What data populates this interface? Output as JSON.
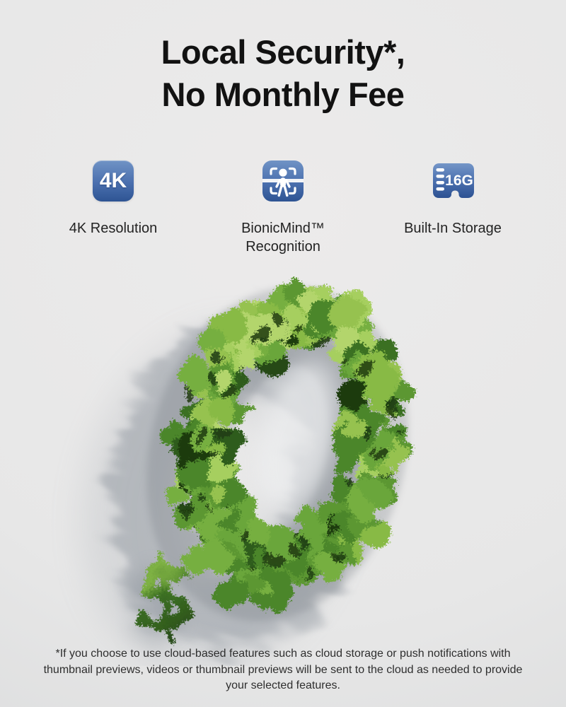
{
  "title": {
    "line1": "Local Security*,",
    "line2": "No Monthly Fee"
  },
  "features": [
    {
      "id": "4k",
      "icon": "4k-badge-icon",
      "icon_text": "4K",
      "label": "4K Resolution"
    },
    {
      "id": "bionicmind",
      "icon": "person-scan-icon",
      "label": "BionicMind™ Recognition"
    },
    {
      "id": "storage",
      "icon": "sd-card-icon",
      "icon_text": "16G",
      "label": "Built-In Storage"
    }
  ],
  "hero": {
    "amount": "0",
    "currency_symbol": "$"
  },
  "disclaimer": "*If you choose to use cloud-based features such as cloud storage or push notifications with thumbnail previews, videos or thumbnail previews will be sent to the cloud as needed to provide your selected features.",
  "colors": {
    "background": "#e9e9e9",
    "title_text": "#121212",
    "label_text": "#232323",
    "icon_blue_top": "#7093c5",
    "icon_blue_bottom": "#2e5493",
    "shadow": "#828a94",
    "foliage_light": [
      "#a6cf5e",
      "#96c24f",
      "#b3d56c",
      "#88ba45"
    ],
    "foliage_mid": [
      "#6ba63b",
      "#5b9732",
      "#4c862b",
      "#76af41"
    ],
    "foliage_dark": [
      "#3b7021",
      "#2e5c1b",
      "#254a16",
      "#1d3a11"
    ]
  }
}
